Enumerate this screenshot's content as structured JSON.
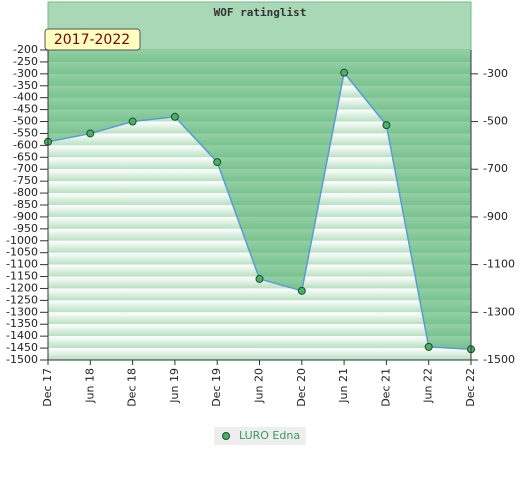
{
  "chart_data": {
    "type": "line",
    "title": "WOF ratinglist",
    "annotation": "2017-2022",
    "categories": [
      "Dec 17",
      "Jun 18",
      "Dec 18",
      "Jun 19",
      "Dec 19",
      "Jun 20",
      "Dec 20",
      "Jun 21",
      "Dec 21",
      "Jun 22",
      "Dec 22"
    ],
    "series": [
      {
        "name": "LURO Edna",
        "color": "#5b9bd5",
        "values": [
          -585,
          -550,
          -500,
          -480,
          -670,
          -1160,
          -1210,
          -295,
          -515,
          -1445,
          -1455
        ]
      }
    ],
    "ylim": [
      -1500,
      -200
    ],
    "yticks": [
      -200,
      -250,
      -300,
      -350,
      -400,
      -450,
      -500,
      -550,
      -600,
      -650,
      -700,
      -750,
      -800,
      -850,
      -900,
      -950,
      -1000,
      -1050,
      -1100,
      -1150,
      -1200,
      -1250,
      -1300,
      -1350,
      -1400,
      -1450,
      -1500
    ],
    "y2lim": [
      -1500,
      -200
    ],
    "y2ticks": [
      -300,
      -500,
      -700,
      -900,
      -1100,
      -1300,
      -1500
    ]
  }
}
